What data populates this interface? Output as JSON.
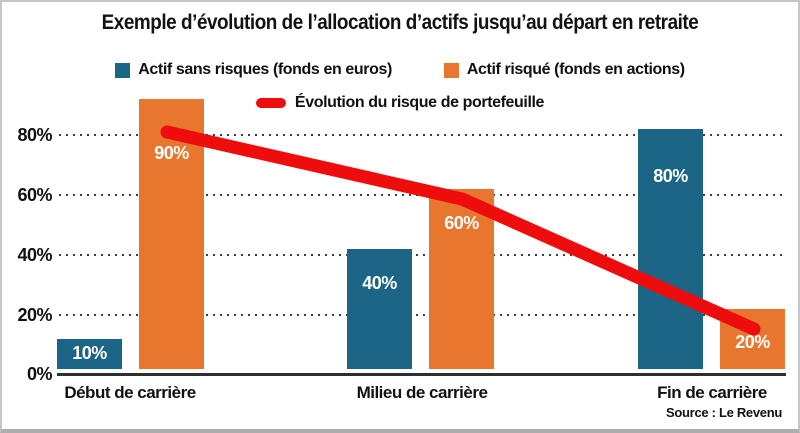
{
  "source": "Source : Le Revenu",
  "colors": {
    "safe": "#1d6586",
    "risky": "#e8762e",
    "line": "#ee0c0c",
    "grid": "#3c3c3c",
    "axis": "#2e2e2e"
  },
  "y_axis": {
    "ticks": [
      "80%",
      "60%",
      "40%",
      "20%",
      "0%"
    ]
  },
  "chart_data": {
    "type": "bar",
    "title": "Exemple d’évolution de l’allocation d’actifs jusqu’au départ en retraite",
    "categories": [
      "Début de carrière",
      "Milieu de carrière",
      "Fin de carrière"
    ],
    "series": [
      {
        "name": "Actif sans risques (fonds en euros)",
        "color": "#1d6586",
        "values": [
          10,
          40,
          80
        ]
      },
      {
        "name": "Actif risqué (fonds en actions)",
        "color": "#e8762e",
        "values": [
          90,
          60,
          20
        ]
      }
    ],
    "line_series": {
      "name": "Évolution du risque de portefeuille",
      "color": "#ee0c0c",
      "values": [
        80,
        60,
        20
      ]
    },
    "bar_labels": [
      [
        "10%",
        "40%",
        "80%"
      ],
      [
        "90%",
        "60%",
        "20%"
      ]
    ],
    "ylim": [
      0,
      100
    ],
    "y_ticks_percent": [
      0,
      20,
      40,
      60,
      80
    ],
    "grid": "horizontal-dotted",
    "legend_position": "top"
  }
}
